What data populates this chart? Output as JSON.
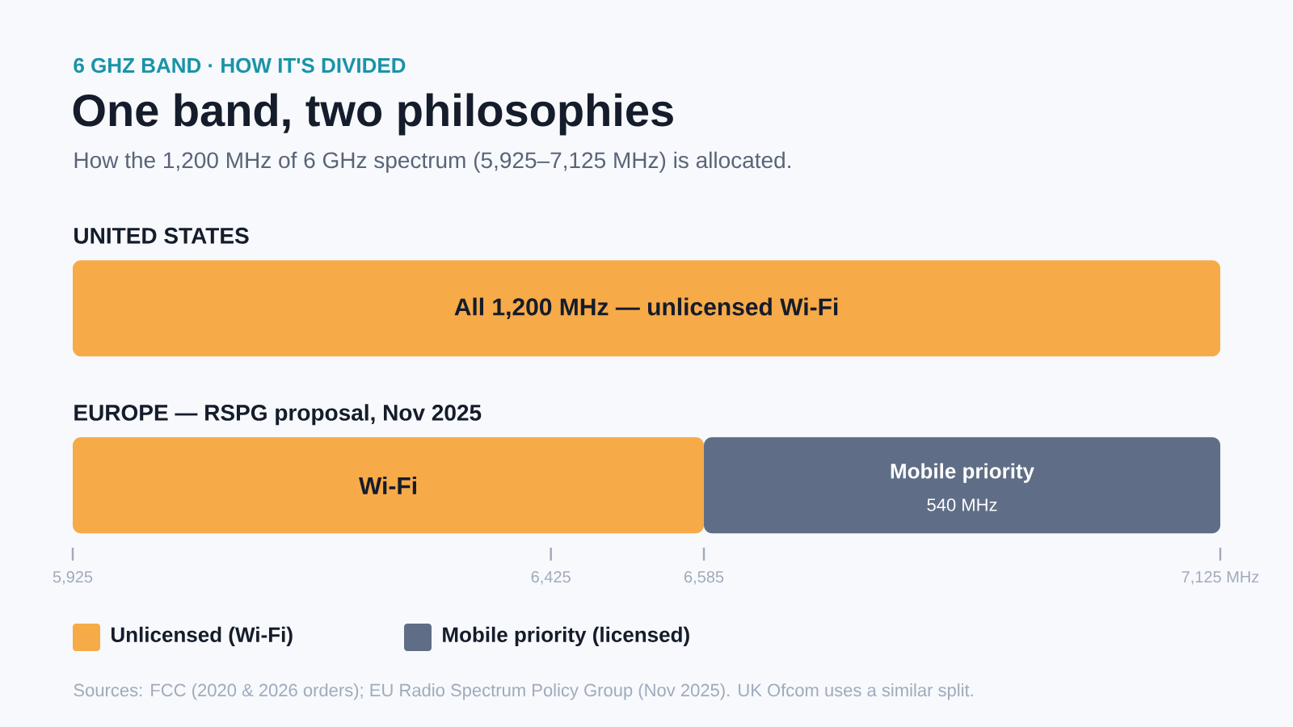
{
  "chart_data": {
    "type": "bar",
    "orientation": "horizontal",
    "title": "One band, two philosophies",
    "subtitle": "How the 1,200 MHz of 6 GHz spectrum (5,925–7,125 MHz) is allocated.",
    "categories": [
      "UNITED STATES",
      "EUROPE — RSPG proposal, Nov 2025"
    ],
    "xlim": [
      5925,
      7125
    ],
    "xticks": [
      {
        "value": 5925,
        "label": "5,925"
      },
      {
        "value": 6425,
        "label": "6,425"
      },
      {
        "value": 6585,
        "label": "6,585"
      },
      {
        "value": 7125,
        "label": "7,125 MHz"
      }
    ],
    "legend": "bottom",
    "series": [
      {
        "name": "Unlicensed (Wi-Fi)",
        "color": "#f7aa48",
        "values": [
          1200,
          660
        ],
        "base": [
          5925,
          5925
        ],
        "value_labels": [
          "All 1,200 MHz — unlicensed Wi-Fi",
          "Wi-Fi"
        ]
      },
      {
        "name": "Mobile priority (licensed)",
        "color": "#5f6e86",
        "values": [
          null,
          540
        ],
        "base": [
          null,
          6585
        ],
        "value_labels": [
          null,
          "Mobile priority"
        ]
      }
    ],
    "annotations": [
      "6 GHZ BAND · HOW IT'S DIVIDED",
      "540 MHz",
      "Sources: FCC (2020 & 2026 orders); EU Radio Spectrum Policy Group (Nov 2025). UK Ofcom uses a similar split."
    ]
  }
}
